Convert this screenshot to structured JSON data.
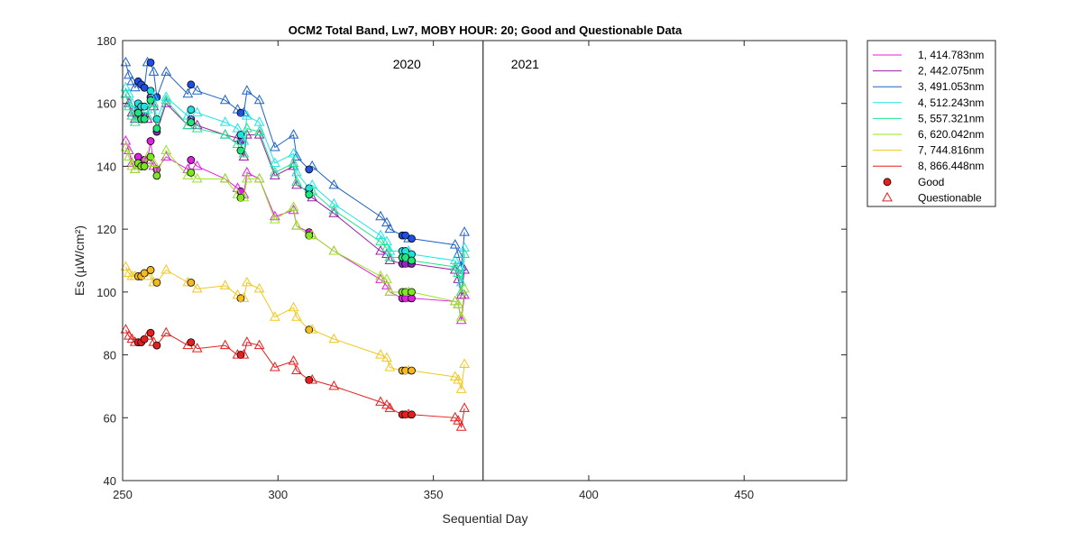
{
  "chart_data": {
    "type": "line",
    "title": "OCM2 Total Band,  Lw7, MOBY HOUR: 20;  Good and Questionable Data",
    "xlabel": "Sequential Day",
    "ylabel": "Es (µW/cm²)",
    "xlim": [
      250,
      483
    ],
    "ylim": [
      40,
      180
    ],
    "xticks": [
      250,
      300,
      350,
      400,
      450
    ],
    "yticks": [
      40,
      60,
      80,
      100,
      120,
      140,
      160,
      180
    ],
    "year_divider": 366,
    "year_labels": [
      {
        "text": "2020",
        "x": 346
      },
      {
        "text": "2021",
        "x": 375
      }
    ],
    "legend_position": "outside-right-top",
    "marker_legend": {
      "good": "Good",
      "questionable": "Questionable"
    },
    "x": [
      251,
      252,
      253,
      254,
      255,
      256,
      257,
      258,
      259,
      260,
      261,
      264,
      271,
      272,
      274,
      283,
      287,
      288,
      289,
      290,
      294,
      299,
      305,
      306,
      310,
      311,
      318,
      333,
      335,
      336,
      340,
      341,
      342,
      343,
      357,
      358,
      359,
      360
    ],
    "good_days": [
      255,
      256,
      257,
      259,
      261,
      272,
      288,
      310,
      340,
      341,
      343
    ],
    "series": [
      {
        "name": "1, 414.783nm",
        "color": "#e61ee6",
        "good_color": "#dd22dd",
        "values": [
          148,
          145,
          141,
          139,
          143,
          141,
          142,
          142,
          148,
          140,
          139,
          143,
          139,
          142,
          140,
          136,
          133,
          132,
          131,
          138,
          136,
          124,
          126,
          121,
          119,
          118,
          113,
          104,
          102,
          100,
          98,
          98,
          98,
          98,
          97,
          96,
          91,
          99
        ]
      },
      {
        "name": "2, 442.075nm",
        "color": "#9b1fa6",
        "good_color": "#8a2bc2",
        "values": [
          163,
          160,
          157,
          155,
          158,
          156,
          156,
          155,
          162,
          159,
          151,
          160,
          153,
          155,
          153,
          150,
          149,
          148,
          143,
          150,
          150,
          137,
          140,
          134,
          132,
          130,
          125,
          113,
          112,
          110,
          109,
          109,
          109,
          109,
          107,
          104,
          99,
          107
        ]
      },
      {
        "name": "3, 491.053nm",
        "color": "#1e62c8",
        "good_color": "#1e4ee6",
        "values": [
          173,
          169,
          167,
          165,
          167,
          166,
          165,
          173,
          173,
          170,
          162,
          170,
          163,
          166,
          164,
          161,
          158,
          157,
          157,
          164,
          161,
          146,
          150,
          143,
          139,
          140,
          134,
          124,
          122,
          120,
          118,
          118,
          117,
          117,
          115,
          112,
          108,
          119
        ]
      },
      {
        "name": "4, 512.243nm",
        "color": "#1ee6e6",
        "good_color": "#22e0e0",
        "values": [
          165,
          163,
          160,
          158,
          160,
          159,
          159,
          158,
          164,
          162,
          155,
          162,
          156,
          158,
          157,
          154,
          152,
          150,
          148,
          156,
          154,
          141,
          144,
          138,
          133,
          134,
          128,
          118,
          116,
          113,
          113,
          113,
          113,
          112,
          110,
          108,
          103,
          114
        ]
      },
      {
        "name": "5, 557.321nm",
        "color": "#1ee68c",
        "good_color": "#1ee67a",
        "values": [
          163,
          159,
          156,
          154,
          157,
          155,
          155,
          156,
          161,
          160,
          152,
          161,
          153,
          154,
          152,
          150,
          147,
          145,
          144,
          152,
          151,
          138,
          141,
          135,
          131,
          132,
          126,
          116,
          114,
          111,
          111,
          111,
          111,
          110,
          108,
          106,
          100,
          112
        ]
      },
      {
        "name": "6, 620.042nm",
        "color": "#96e61e",
        "good_color": "#7ee61e",
        "values": [
          146,
          143,
          140,
          139,
          141,
          140,
          140,
          143,
          143,
          141,
          137,
          145,
          137,
          138,
          136,
          136,
          131,
          130,
          130,
          136,
          136,
          123,
          127,
          121,
          118,
          118,
          113,
          105,
          104,
          100,
          100,
          100,
          100,
          100,
          97,
          96,
          92,
          101
        ]
      },
      {
        "name": "7, 744.816nm",
        "color": "#f0c81e",
        "good_color": "#f5b81e",
        "values": [
          108,
          106,
          105,
          105,
          105,
          105,
          106,
          105,
          107,
          103,
          103,
          107,
          103,
          103,
          101,
          102,
          99,
          98,
          98,
          103,
          101,
          92,
          95,
          92,
          88,
          88,
          85,
          80,
          79,
          76,
          75,
          75,
          75,
          75,
          73,
          72,
          69,
          77
        ]
      },
      {
        "name": "8, 866.448nm",
        "color": "#e61e1e",
        "good_color": "#e61e1e",
        "values": [
          88,
          86,
          85,
          84,
          84,
          84,
          85,
          86,
          87,
          84,
          83,
          87,
          83,
          84,
          82,
          83,
          80,
          80,
          80,
          84,
          83,
          76,
          78,
          75,
          72,
          72,
          70,
          65,
          64,
          63,
          61,
          61,
          61,
          61,
          60,
          59,
          57,
          63
        ]
      }
    ]
  }
}
